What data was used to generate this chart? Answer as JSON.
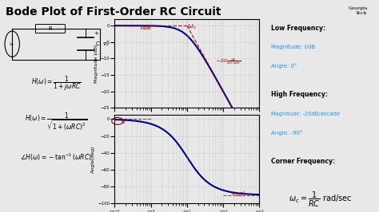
{
  "title": "Bode Plot of First-Order RC Circuit",
  "title_fontsize": 10,
  "background_color": "#e8e8e8",
  "plot_bg_color": "#e8e8e8",
  "omega_min": 0.1,
  "omega_max": 1000,
  "omega_c": 10,
  "mag_ylim": [
    -25,
    2
  ],
  "phase_ylim": [
    -100,
    5
  ],
  "mag_yticks": [
    0,
    -5,
    -10,
    -15,
    -20,
    -25
  ],
  "phase_yticks": [
    0,
    -20,
    -40,
    -60,
    -80,
    -100
  ],
  "mag_ylabel": "Magnitude (dB)",
  "phase_ylabel": "Angle(deg)",
  "omega_label": "ω",
  "line_color": "#00008B",
  "annot_color": "#8B0000",
  "grid_color": "#b0b0b0",
  "low_freq_title": "Low Frequency:",
  "low_freq_mag": "Magnitude: 0dB",
  "low_freq_angle": "Angle: 0°",
  "high_freq_title": "High Frequency:",
  "high_freq_mag": "Magnitude: -20dB/decade",
  "high_freq_angle": "Angle: -90°",
  "corner_title": "Corner Frequency:",
  "blue_color": "#1E90FF",
  "gt_text": "Georgia\nTech"
}
